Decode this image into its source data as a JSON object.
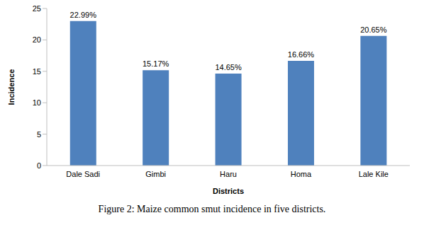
{
  "chart_data": {
    "type": "bar",
    "title": "Figure 2: Maize common smut incidence in five districts.",
    "x_label": "Districts",
    "y_label": "Incidence",
    "categories": [
      "Dale Sadi",
      "Gimbi",
      "Haru",
      "Homa",
      "Lale Kile"
    ],
    "values": [
      22.99,
      15.17,
      14.65,
      16.66,
      20.65
    ],
    "value_labels": [
      "22.99%",
      "15.17%",
      "14.65%",
      "16.66%",
      "20.65%"
    ],
    "data_labels": true,
    "color": "#4f81bd",
    "ylim": [
      0,
      25
    ],
    "yticks": [
      0,
      5,
      10,
      15,
      20,
      25
    ],
    "grid": false
  }
}
